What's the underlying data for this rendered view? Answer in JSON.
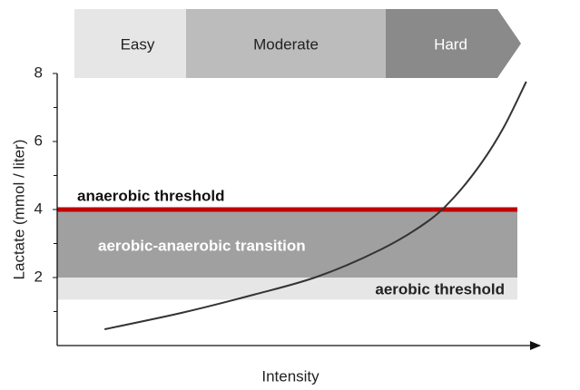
{
  "chart_data": {
    "type": "line",
    "phases": [
      {
        "label": "Easy",
        "color": "#e6e6e6",
        "text_color": "#222222"
      },
      {
        "label": "Moderate",
        "color": "#bcbcbc",
        "text_color": "#222222"
      },
      {
        "label": "Hard",
        "color": "#8a8a8a",
        "text_color": "#ffffff"
      }
    ],
    "y_label": "Lactate (mmol / liter)",
    "x_label": "Intensity",
    "ylim": [
      0,
      8
    ],
    "yticks": [
      2,
      4,
      6,
      8
    ],
    "yminor_ticks": [
      1,
      3,
      5,
      7
    ],
    "xlim": [
      0,
      100
    ],
    "bands": [
      {
        "from": 1.35,
        "to": 2,
        "color": "#e6e6e6",
        "label": "aerobic threshold",
        "label_color": "#222222"
      },
      {
        "from": 2,
        "to": 4,
        "color": "#a0a0a0",
        "label": "aerobic-anaerobic transition",
        "label_color": "#ffffff"
      }
    ],
    "threshold": {
      "value": 4,
      "color": "#c00000",
      "label": "anaerobic threshold"
    },
    "series": [
      {
        "name": "Lactate",
        "color": "#333333",
        "x": [
          10,
          26.2,
          41.6,
          55,
          68.4,
          78,
          83.7,
          89.5,
          94.3,
          99
        ],
        "values": [
          0.48,
          0.96,
          1.5,
          2.03,
          2.83,
          3.63,
          4.35,
          5.36,
          6.43,
          7.76
        ]
      }
    ]
  }
}
